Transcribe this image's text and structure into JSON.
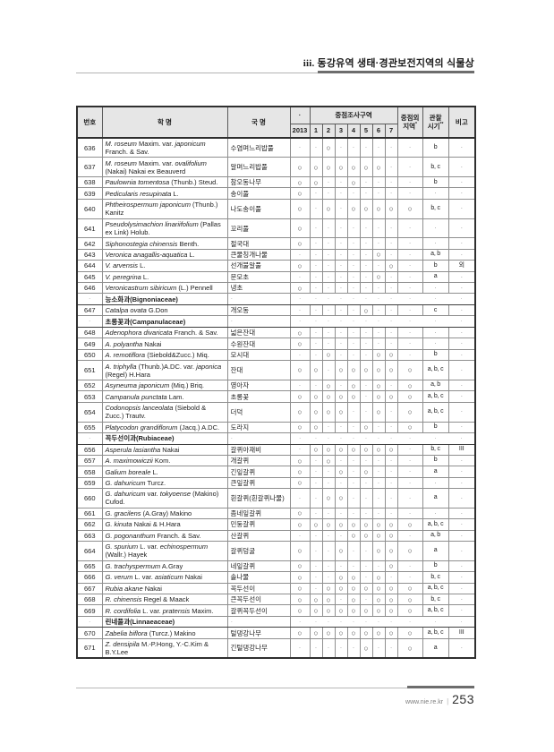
{
  "page": {
    "title_prefix": "iii.",
    "title_text": "동강유역 생태·경관보전지역의 식물상",
    "footer": {
      "site": "www.nie.re.kr",
      "separator": "|",
      "page_number": "253"
    }
  },
  "table": {
    "headers": {
      "no": "번호",
      "sci_name": "학 명",
      "kor_name": "국 명",
      "year_top": "·",
      "survey_group": "중점조사구역",
      "year": "2013",
      "plots": [
        "1",
        "2",
        "3",
        "4",
        "5",
        "6",
        "7"
      ],
      "outside_line1": "중점외",
      "outside_line2": "지역",
      "outside_mark": "*",
      "period_line1": "관찰",
      "period_line2": "시기",
      "period_mark": "**",
      "note": "비고"
    },
    "legend": {
      "circle": "○",
      "dot": "·"
    },
    "rows": [
      {
        "type": "species",
        "lines": 2,
        "no": "636",
        "name": [
          [
            "i",
            "M. roseum"
          ],
          [
            "n",
            " Maxim. var. "
          ],
          [
            "i",
            "japonicum"
          ],
          [
            "br"
          ],
          [
            "n",
            "Franch. & Sav."
          ]
        ],
        "kor": "수염며느리밥풀",
        "marks": "··○······",
        "time": "b",
        "note": "·"
      },
      {
        "type": "species",
        "lines": 2,
        "no": "637",
        "name": [
          [
            "i",
            "M. roseum"
          ],
          [
            "n",
            " Maxim. var. "
          ],
          [
            "i",
            "ovalifolium"
          ],
          [
            "br"
          ],
          [
            "n",
            "(Nakai) Nakai ex Beauverd"
          ]
        ],
        "kor": "알며느리밥풀",
        "marks": "○○○○○○○··",
        "time": "b, c",
        "note": "·"
      },
      {
        "type": "species",
        "lines": 1,
        "no": "638",
        "name": [
          [
            "i",
            "Paulownia tomentosa"
          ],
          [
            "n",
            " (Thunb.) Steud."
          ]
        ],
        "kor": "참오동나무",
        "marks": "○○··○····",
        "time": "b",
        "note": "·"
      },
      {
        "type": "species",
        "lines": 1,
        "no": "639",
        "name": [
          [
            "i",
            "Pedicularis resupinata"
          ],
          [
            "n",
            " L."
          ]
        ],
        "kor": "송이풀",
        "marks": "○········",
        "time": "·",
        "note": "·"
      },
      {
        "type": "species",
        "lines": 2,
        "no": "640",
        "name": [
          [
            "i",
            "Phtheirospermum japonicum"
          ],
          [
            "n",
            " (Thunb.)"
          ],
          [
            "br"
          ],
          [
            "n",
            "Kanitz"
          ]
        ],
        "kor": "나도송이풀",
        "marks": "○·○·○○○○○",
        "time": "b, c",
        "note": "·"
      },
      {
        "type": "species",
        "lines": 2,
        "no": "641",
        "name": [
          [
            "i",
            "Pseudolysimachion linariifolium"
          ],
          [
            "n",
            " (Pallas"
          ],
          [
            "br"
          ],
          [
            "n",
            "ex Link) Holub."
          ]
        ],
        "kor": "꼬리풀",
        "marks": "○········",
        "time": "·",
        "note": "·"
      },
      {
        "type": "species",
        "lines": 1,
        "no": "642",
        "name": [
          [
            "i",
            "Siphonostegia chinensis"
          ],
          [
            "n",
            " Benth."
          ]
        ],
        "kor": "절국대",
        "marks": "○········",
        "time": "·",
        "note": "·"
      },
      {
        "type": "species",
        "lines": 1,
        "no": "643",
        "name": [
          [
            "i",
            "Veronica anagallis-aquatica"
          ],
          [
            "n",
            " L."
          ]
        ],
        "kor": "큰물칭개나물",
        "marks": "······○··",
        "time": "a, b",
        "note": "·"
      },
      {
        "type": "species",
        "lines": 1,
        "no": "644",
        "name": [
          [
            "i",
            "V. arvensis"
          ],
          [
            "n",
            " L."
          ]
        ],
        "kor": "선개불알풀",
        "marks": "○······○·",
        "time": "b",
        "note": "외"
      },
      {
        "type": "species",
        "lines": 1,
        "no": "645",
        "name": [
          [
            "i",
            "V. peregrina"
          ],
          [
            "n",
            " L."
          ]
        ],
        "kor": "문모초",
        "marks": "······○··",
        "time": "a",
        "note": "·"
      },
      {
        "type": "species",
        "lines": 1,
        "no": "646",
        "name": [
          [
            "i",
            "Veronicastrum sibiricum"
          ],
          [
            "n",
            " (L.) Pennell"
          ]
        ],
        "kor": "냉초",
        "marks": "○········",
        "time": "·",
        "note": "·"
      },
      {
        "type": "family",
        "name": "능소화과(Bignoniaceae)"
      },
      {
        "type": "species",
        "lines": 1,
        "no": "647",
        "name": [
          [
            "i",
            "Catalpa ovata"
          ],
          [
            "n",
            " G.Don"
          ]
        ],
        "kor": "개오동",
        "marks": "·····○···",
        "time": "c",
        "note": "·"
      },
      {
        "type": "family",
        "name": "초롱꽃과(Campanulaceae)"
      },
      {
        "type": "species",
        "lines": 1,
        "no": "648",
        "name": [
          [
            "i",
            "Adenophora divaricata"
          ],
          [
            "n",
            " Franch. & Sav."
          ]
        ],
        "kor": "넓은잔대",
        "marks": "○········",
        "time": "·",
        "note": "·"
      },
      {
        "type": "species",
        "lines": 1,
        "no": "649",
        "name": [
          [
            "i",
            "A. polyantha"
          ],
          [
            "n",
            " Nakai"
          ]
        ],
        "kor": "수원잔대",
        "marks": "○········",
        "time": "·",
        "note": "·"
      },
      {
        "type": "species",
        "lines": 1,
        "no": "650",
        "name": [
          [
            "i",
            "A. remotiflora"
          ],
          [
            "n",
            " (Siebold&Zucc.) Miq."
          ]
        ],
        "kor": "모시대",
        "marks": "··○···○○·",
        "time": "b",
        "note": "·"
      },
      {
        "type": "species",
        "lines": 2,
        "no": "651",
        "name": [
          [
            "i",
            "A. triphylla"
          ],
          [
            "n",
            " (Thunb.)A.DC. var. "
          ],
          [
            "i",
            "japonica"
          ],
          [
            "br"
          ],
          [
            "n",
            "(Regel) H.Hara"
          ]
        ],
        "kor": "잔대",
        "marks": "○○·○○○○○○",
        "time": "a, b, c",
        "note": "·"
      },
      {
        "type": "species",
        "lines": 1,
        "no": "652",
        "name": [
          [
            "i",
            "Asyneuma japonicum"
          ],
          [
            "n",
            " (Miq.) Briq."
          ]
        ],
        "kor": "영아자",
        "marks": "··○·○·○·○",
        "time": "a, b",
        "note": "·"
      },
      {
        "type": "species",
        "lines": 1,
        "no": "653",
        "name": [
          [
            "i",
            "Campanula punctata"
          ],
          [
            "n",
            " Lam."
          ]
        ],
        "kor": "초롱꽃",
        "marks": "○○○○○·○○○",
        "time": "a, b, c",
        "note": "·"
      },
      {
        "type": "species",
        "lines": 2,
        "no": "654",
        "name": [
          [
            "i",
            "Codonopsis lanceolata"
          ],
          [
            "n",
            " (Siebold &"
          ],
          [
            "br"
          ],
          [
            "n",
            "Zucc.) Trautv."
          ]
        ],
        "kor": "더덕",
        "marks": "○○○○··○·○",
        "time": "a, b, c",
        "note": "·"
      },
      {
        "type": "species",
        "lines": 1,
        "no": "655",
        "name": [
          [
            "i",
            "Platycodon grandiflorum"
          ],
          [
            "n",
            " (Jacq.) A.DC."
          ]
        ],
        "kor": "도라지",
        "marks": "○○···○··○",
        "time": "b",
        "note": "·"
      },
      {
        "type": "family",
        "name": "꼭두선이과(Rubiaceae)"
      },
      {
        "type": "species",
        "lines": 1,
        "no": "656",
        "name": [
          [
            "i",
            "Asperula lasiantha"
          ],
          [
            "n",
            " Nakai"
          ]
        ],
        "kor": "갈퀴아재비",
        "marks": "·○○○○○○○·",
        "time": "b, c",
        "note": "III"
      },
      {
        "type": "species",
        "lines": 1,
        "no": "657",
        "name": [
          [
            "i",
            "A. maximowiczii"
          ],
          [
            "n",
            " Kom."
          ]
        ],
        "kor": "개갈퀴",
        "marks": "○·○······",
        "time": "b",
        "note": "·"
      },
      {
        "type": "species",
        "lines": 1,
        "no": "658",
        "name": [
          [
            "i",
            "Galium boreale"
          ],
          [
            "n",
            " L."
          ]
        ],
        "kor": "긴잎갈퀴",
        "marks": "○··○·○···",
        "time": "a",
        "note": "·"
      },
      {
        "type": "species",
        "lines": 1,
        "no": "659",
        "name": [
          [
            "i",
            "G. dahuricum"
          ],
          [
            "n",
            " Turcz."
          ]
        ],
        "kor": "큰잎갈퀴",
        "marks": "○········",
        "time": "·",
        "note": "·"
      },
      {
        "type": "species",
        "lines": 2,
        "no": "660",
        "name": [
          [
            "i",
            "G. dahuricum"
          ],
          [
            "n",
            " var. "
          ],
          [
            "i",
            "tokyoense"
          ],
          [
            "n",
            " (Makino)"
          ],
          [
            "br"
          ],
          [
            "n",
            "Cufod."
          ]
        ],
        "kor": "흰갈퀴(흰갈퀴나물)",
        "marks": "··○○·····",
        "time": "a",
        "note": "·"
      },
      {
        "type": "species",
        "lines": 1,
        "no": "661",
        "name": [
          [
            "i",
            "G. gracilens"
          ],
          [
            "n",
            " (A.Gray) Makino"
          ]
        ],
        "kor": "좀네잎갈퀴",
        "marks": "○········",
        "time": "·",
        "note": "·"
      },
      {
        "type": "species",
        "lines": 1,
        "no": "662",
        "name": [
          [
            "i",
            "G. kinuta"
          ],
          [
            "n",
            " Nakai & H.Hara"
          ]
        ],
        "kor": "민둥갈퀴",
        "marks": "○○○○○○○○○",
        "time": "a, b, c",
        "note": "·"
      },
      {
        "type": "species",
        "lines": 1,
        "no": "663",
        "name": [
          [
            "i",
            "G. pogonanthum"
          ],
          [
            "n",
            " Franch. & Sav."
          ]
        ],
        "kor": "산갈퀴",
        "marks": "····○○○○·",
        "time": "a, b",
        "note": "·"
      },
      {
        "type": "species",
        "lines": 2,
        "no": "664",
        "name": [
          [
            "i",
            "G. spurium"
          ],
          [
            "n",
            " L. var. "
          ],
          [
            "i",
            "echinospermum"
          ],
          [
            "br"
          ],
          [
            "n",
            "(Wallr.) Hayek"
          ]
        ],
        "kor": "갈퀴덩굴",
        "marks": "○··○··○○○",
        "time": "a",
        "note": "·"
      },
      {
        "type": "species",
        "lines": 1,
        "no": "665",
        "name": [
          [
            "i",
            "G. trachyspermum"
          ],
          [
            "n",
            " A.Gray"
          ]
        ],
        "kor": "네잎갈퀴",
        "marks": "○······○·",
        "time": "b",
        "note": "·"
      },
      {
        "type": "species",
        "lines": 1,
        "no": "666",
        "name": [
          [
            "i",
            "G. verum"
          ],
          [
            "n",
            " L. var. "
          ],
          [
            "i",
            "asiaticum"
          ],
          [
            "n",
            " Nakai"
          ]
        ],
        "kor": "솔나물",
        "marks": "○··○○·○··",
        "time": "b, c",
        "note": "·"
      },
      {
        "type": "species",
        "lines": 1,
        "no": "667",
        "name": [
          [
            "i",
            "Rubia akane"
          ],
          [
            "n",
            " Nakai"
          ]
        ],
        "kor": "꼭두선이",
        "marks": "○·○○○○○○○",
        "time": "a, b, c",
        "note": "·"
      },
      {
        "type": "species",
        "lines": 1,
        "no": "668",
        "name": [
          [
            "i",
            "R. chinensis"
          ],
          [
            "n",
            " Regel & Maack"
          ]
        ],
        "kor": "큰꼭두선이",
        "marks": "○○○·○·○○○",
        "time": "b, c",
        "note": "·"
      },
      {
        "type": "species",
        "lines": 1,
        "no": "669",
        "name": [
          [
            "i",
            "R. cordifolia"
          ],
          [
            "n",
            " L. var. "
          ],
          [
            "i",
            "pratensis"
          ],
          [
            "n",
            " Maxim."
          ]
        ],
        "kor": "갈퀴꼭두선이",
        "marks": "○○○○○○○○○",
        "time": "a, b, c",
        "note": "·"
      },
      {
        "type": "family",
        "name": "린네풀과(Linnaeaceae)"
      },
      {
        "type": "species",
        "lines": 1,
        "no": "670",
        "name": [
          [
            "i",
            "Zabelia biflora"
          ],
          [
            "n",
            " (Turcz.) Makino"
          ]
        ],
        "kor": "털댕강나무",
        "marks": "○○○○○○○○○",
        "time": "a, b, c",
        "note": "III"
      },
      {
        "type": "species",
        "lines": 2,
        "no": "671",
        "name": [
          [
            "i",
            "Z. densipila"
          ],
          [
            "n",
            " M.-P.Hong, Y.-C.Kim &"
          ],
          [
            "br"
          ],
          [
            "n",
            "B.Y.Lee"
          ]
        ],
        "kor": "긴털댕강나무",
        "marks": "·····○··○",
        "time": "a",
        "note": "·"
      }
    ]
  }
}
